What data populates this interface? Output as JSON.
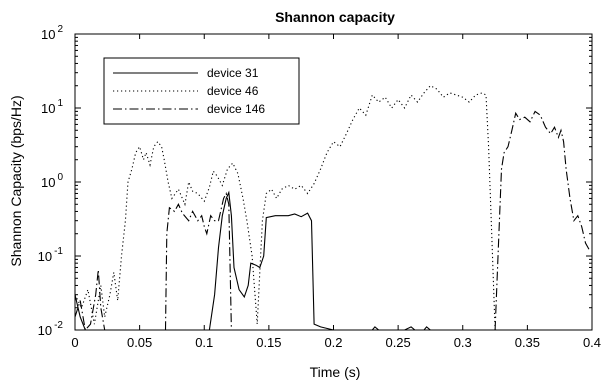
{
  "chart_data": {
    "type": "line",
    "title": "Shannon capacity",
    "xlabel": "Time (s)",
    "ylabel": "Shannon Capacity (bps/Hz)",
    "xlim": [
      0,
      0.4
    ],
    "ylim": [
      0.01,
      100
    ],
    "yscale": "log",
    "grid": false,
    "legend_position": "top-left",
    "x_ticks": [
      0,
      0.05,
      0.1,
      0.15,
      0.2,
      0.25,
      0.3,
      0.35,
      0.4
    ],
    "x_tick_labels": [
      "0",
      "0.05",
      "0.1",
      "0.15",
      "0.2",
      "0.25",
      "0.3",
      "0.35",
      "0.4"
    ],
    "y_ticks": [
      {
        "value": 0.01,
        "base": "10",
        "exp": "-2"
      },
      {
        "value": 0.1,
        "base": "10",
        "exp": "-1"
      },
      {
        "value": 1,
        "base": "10",
        "exp": "0"
      },
      {
        "value": 10,
        "base": "10",
        "exp": "1"
      },
      {
        "value": 100,
        "base": "10",
        "exp": "2"
      }
    ],
    "series": [
      {
        "name": "device 31",
        "style": "solid",
        "color": "#000000",
        "points": [
          [
            0.0,
            0.03
          ],
          [
            0.004,
            0.015
          ],
          [
            0.008,
            0.01
          ],
          [
            0.1,
            0.01
          ],
          [
            0.104,
            0.01
          ],
          [
            0.108,
            0.03
          ],
          [
            0.111,
            0.13
          ],
          [
            0.114,
            0.35
          ],
          [
            0.117,
            0.6
          ],
          [
            0.119,
            0.72
          ],
          [
            0.121,
            0.35
          ],
          [
            0.123,
            0.07
          ],
          [
            0.127,
            0.035
          ],
          [
            0.131,
            0.028
          ],
          [
            0.134,
            0.04
          ],
          [
            0.136,
            0.08
          ],
          [
            0.14,
            0.075
          ],
          [
            0.143,
            0.07
          ],
          [
            0.146,
            0.1
          ],
          [
            0.148,
            0.33
          ],
          [
            0.155,
            0.35
          ],
          [
            0.165,
            0.35
          ],
          [
            0.17,
            0.37
          ],
          [
            0.175,
            0.34
          ],
          [
            0.18,
            0.38
          ],
          [
            0.183,
            0.3
          ],
          [
            0.185,
            0.012
          ],
          [
            0.19,
            0.011
          ],
          [
            0.2,
            0.01
          ],
          [
            0.23,
            0.01
          ],
          [
            0.232,
            0.011
          ],
          [
            0.235,
            0.01
          ],
          [
            0.255,
            0.01
          ],
          [
            0.26,
            0.011
          ],
          [
            0.263,
            0.01
          ],
          [
            0.27,
            0.01
          ],
          [
            0.272,
            0.011
          ],
          [
            0.275,
            0.01
          ],
          [
            0.4,
            0.01
          ]
        ]
      },
      {
        "name": "device 46",
        "style": "dotted",
        "color": "#000000",
        "points": [
          [
            0.0,
            0.03
          ],
          [
            0.005,
            0.02
          ],
          [
            0.01,
            0.035
          ],
          [
            0.015,
            0.012
          ],
          [
            0.02,
            0.04
          ],
          [
            0.023,
            0.015
          ],
          [
            0.027,
            0.03
          ],
          [
            0.03,
            0.06
          ],
          [
            0.033,
            0.025
          ],
          [
            0.036,
            0.1
          ],
          [
            0.039,
            0.3
          ],
          [
            0.041,
            1.0
          ],
          [
            0.044,
            1.5
          ],
          [
            0.047,
            2.5
          ],
          [
            0.05,
            3.0
          ],
          [
            0.053,
            2.0
          ],
          [
            0.055,
            2.5
          ],
          [
            0.058,
            1.7
          ],
          [
            0.061,
            3.0
          ],
          [
            0.064,
            3.5
          ],
          [
            0.067,
            3.0
          ],
          [
            0.069,
            2.0
          ],
          [
            0.072,
            1.0
          ],
          [
            0.075,
            0.6
          ],
          [
            0.08,
            0.8
          ],
          [
            0.085,
            0.5
          ],
          [
            0.088,
            1.0
          ],
          [
            0.091,
            0.75
          ],
          [
            0.095,
            0.7
          ],
          [
            0.1,
            0.55
          ],
          [
            0.104,
            0.85
          ],
          [
            0.107,
            1.4
          ],
          [
            0.11,
            1.2
          ],
          [
            0.114,
            0.9
          ],
          [
            0.118,
            1.5
          ],
          [
            0.122,
            1.8
          ],
          [
            0.126,
            1.3
          ],
          [
            0.13,
            0.6
          ],
          [
            0.133,
            0.3
          ],
          [
            0.137,
            0.1
          ],
          [
            0.141,
            0.012
          ],
          [
            0.145,
            0.3
          ],
          [
            0.148,
            0.7
          ],
          [
            0.152,
            0.8
          ],
          [
            0.156,
            0.6
          ],
          [
            0.16,
            0.8
          ],
          [
            0.165,
            0.9
          ],
          [
            0.17,
            0.8
          ],
          [
            0.175,
            0.9
          ],
          [
            0.18,
            0.7
          ],
          [
            0.185,
            0.95
          ],
          [
            0.19,
            1.5
          ],
          [
            0.195,
            2.5
          ],
          [
            0.2,
            3.5
          ],
          [
            0.205,
            3.0
          ],
          [
            0.21,
            4.5
          ],
          [
            0.215,
            7.0
          ],
          [
            0.22,
            10.0
          ],
          [
            0.225,
            8.0
          ],
          [
            0.23,
            15.0
          ],
          [
            0.235,
            12.0
          ],
          [
            0.24,
            14.0
          ],
          [
            0.245,
            10.0
          ],
          [
            0.25,
            13.0
          ],
          [
            0.255,
            10.0
          ],
          [
            0.26,
            15.0
          ],
          [
            0.265,
            12.0
          ],
          [
            0.27,
            16.0
          ],
          [
            0.275,
            20.0
          ],
          [
            0.28,
            18.0
          ],
          [
            0.285,
            14.0
          ],
          [
            0.29,
            16.0
          ],
          [
            0.295,
            15.0
          ],
          [
            0.3,
            14.0
          ],
          [
            0.305,
            12.0
          ],
          [
            0.31,
            15.0
          ],
          [
            0.315,
            16.0
          ],
          [
            0.318,
            15.0
          ],
          [
            0.32,
            3.0
          ],
          [
            0.323,
            0.1
          ],
          [
            0.325,
            0.01
          ]
        ]
      },
      {
        "name": "device 146",
        "style": "dashdot",
        "color": "#000000",
        "points": [
          [
            0.0,
            0.015
          ],
          [
            0.004,
            0.025
          ],
          [
            0.008,
            0.01
          ],
          [
            0.012,
            0.012
          ],
          [
            0.016,
            0.03
          ],
          [
            0.018,
            0.065
          ],
          [
            0.02,
            0.02
          ],
          [
            0.023,
            0.01
          ],
          [
            0.07,
            0.01
          ],
          [
            0.071,
            0.2
          ],
          [
            0.073,
            0.45
          ],
          [
            0.077,
            0.4
          ],
          [
            0.08,
            0.5
          ],
          [
            0.083,
            0.38
          ],
          [
            0.088,
            0.3
          ],
          [
            0.091,
            0.4
          ],
          [
            0.095,
            0.3
          ],
          [
            0.098,
            0.35
          ],
          [
            0.1,
            0.25
          ],
          [
            0.102,
            0.2
          ],
          [
            0.105,
            0.35
          ],
          [
            0.108,
            0.3
          ],
          [
            0.111,
            0.3
          ],
          [
            0.115,
            0.6
          ],
          [
            0.117,
            0.7
          ],
          [
            0.119,
            0.5
          ],
          [
            0.121,
            0.01
          ],
          [
            0.325,
            0.01
          ],
          [
            0.328,
            0.2
          ],
          [
            0.33,
            1.5
          ],
          [
            0.332,
            2.5
          ],
          [
            0.335,
            3.0
          ],
          [
            0.338,
            5.0
          ],
          [
            0.341,
            8.5
          ],
          [
            0.344,
            7.0
          ],
          [
            0.348,
            7.5
          ],
          [
            0.352,
            6.5
          ],
          [
            0.356,
            9.0
          ],
          [
            0.36,
            8.0
          ],
          [
            0.364,
            5.5
          ],
          [
            0.368,
            4.5
          ],
          [
            0.371,
            5.5
          ],
          [
            0.374,
            4.0
          ],
          [
            0.376,
            5.0
          ],
          [
            0.378,
            3.5
          ],
          [
            0.38,
            1.5
          ],
          [
            0.383,
            0.6
          ],
          [
            0.386,
            0.3
          ],
          [
            0.389,
            0.35
          ],
          [
            0.392,
            0.25
          ],
          [
            0.395,
            0.15
          ],
          [
            0.398,
            0.12
          ]
        ]
      }
    ]
  }
}
